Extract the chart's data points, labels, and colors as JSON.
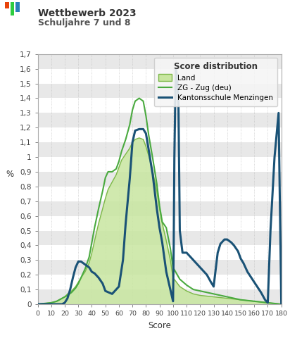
{
  "title1": "Wettbewerb 2023",
  "title2": "Schuljahre 7 und 8",
  "xlabel": "Score",
  "ylabel": "%",
  "ylim": [
    0,
    1.7
  ],
  "yticks": [
    0,
    0.1,
    0.2,
    0.3,
    0.4,
    0.5,
    0.6,
    0.7,
    0.8,
    0.9,
    1.0,
    1.1,
    1.2,
    1.3,
    1.4,
    1.5,
    1.6,
    1.7
  ],
  "ytick_labels": [
    "0",
    "0,1",
    "0,2",
    "0,3",
    "0,4",
    "0,5",
    "0,6",
    "0,7",
    "0,8",
    "0,9",
    "1",
    "1,1",
    "1,2",
    "1,3",
    "1,4",
    "1,5",
    "1,6",
    "1,7"
  ],
  "xticks": [
    0,
    10,
    20,
    30,
    40,
    50,
    60,
    70,
    80,
    90,
    100,
    110,
    120,
    130,
    140,
    150,
    160,
    170,
    180
  ],
  "xlim": [
    0,
    180
  ],
  "legend_title": "Score distribution",
  "legend_entries": [
    "Land",
    "ZG - Zug (deu)",
    "Kantonsschule Menzingen"
  ],
  "land_fill_color": "#c8e6a0",
  "land_fill_alpha": 0.85,
  "land_line_color": "#7db84a",
  "zg_line_color": "#4aaa3f",
  "school_line_color": "#1a5276",
  "band_colors": [
    "#e8e8e8",
    "#ffffff"
  ],
  "land_x": [
    0,
    5,
    10,
    14,
    16,
    18,
    20,
    22,
    25,
    28,
    30,
    32,
    35,
    38,
    40,
    42,
    45,
    48,
    50,
    52,
    55,
    58,
    60,
    62,
    65,
    68,
    70,
    72,
    75,
    78,
    80,
    82,
    85,
    88,
    90,
    92,
    95,
    98,
    100,
    105,
    110,
    115,
    120,
    125,
    130,
    135,
    140,
    145,
    150,
    155,
    160,
    165,
    170,
    175,
    178,
    180
  ],
  "land_y": [
    0,
    0.005,
    0.01,
    0.02,
    0.03,
    0.04,
    0.05,
    0.07,
    0.09,
    0.12,
    0.15,
    0.18,
    0.22,
    0.28,
    0.35,
    0.43,
    0.55,
    0.65,
    0.72,
    0.78,
    0.83,
    0.88,
    0.93,
    0.98,
    1.02,
    1.06,
    1.1,
    1.12,
    1.13,
    1.12,
    1.07,
    1.01,
    0.9,
    0.77,
    0.65,
    0.55,
    0.43,
    0.3,
    0.18,
    0.12,
    0.09,
    0.07,
    0.06,
    0.055,
    0.05,
    0.045,
    0.04,
    0.035,
    0.03,
    0.025,
    0.02,
    0.015,
    0.01,
    0.005,
    0.002,
    0
  ],
  "zg_x": [
    0,
    5,
    10,
    14,
    16,
    18,
    20,
    22,
    25,
    28,
    30,
    32,
    35,
    38,
    40,
    42,
    45,
    48,
    50,
    52,
    55,
    58,
    60,
    62,
    65,
    68,
    70,
    72,
    75,
    78,
    80,
    82,
    85,
    88,
    90,
    92,
    95,
    98,
    100,
    105,
    110,
    115,
    120,
    125,
    130,
    135,
    140,
    145,
    150,
    155,
    160,
    165,
    170,
    175,
    178,
    180
  ],
  "zg_y": [
    0,
    0.005,
    0.01,
    0.02,
    0.03,
    0.04,
    0.05,
    0.06,
    0.08,
    0.11,
    0.14,
    0.18,
    0.24,
    0.32,
    0.42,
    0.52,
    0.65,
    0.77,
    0.86,
    0.9,
    0.9,
    0.92,
    0.97,
    1.04,
    1.12,
    1.22,
    1.32,
    1.38,
    1.4,
    1.38,
    1.28,
    1.15,
    0.99,
    0.82,
    0.67,
    0.56,
    0.52,
    0.38,
    0.25,
    0.17,
    0.13,
    0.1,
    0.09,
    0.08,
    0.07,
    0.06,
    0.05,
    0.04,
    0.03,
    0.025,
    0.02,
    0.015,
    0.01,
    0.005,
    0.002,
    0
  ],
  "school_x": [
    0,
    10,
    18,
    20,
    22,
    24,
    26,
    28,
    30,
    32,
    35,
    38,
    40,
    42,
    45,
    48,
    50,
    55,
    60,
    63,
    65,
    68,
    70,
    72,
    75,
    78,
    80,
    82,
    85,
    88,
    90,
    92,
    95,
    98,
    100,
    100.5,
    101,
    102,
    103,
    104,
    105,
    107,
    110,
    112,
    115,
    120,
    125,
    128,
    130,
    133,
    135,
    138,
    140,
    143,
    145,
    148,
    150,
    152,
    155,
    160,
    165,
    168,
    170,
    172,
    175,
    178,
    180
  ],
  "school_y": [
    0,
    0,
    0,
    0.01,
    0.04,
    0.1,
    0.18,
    0.25,
    0.29,
    0.29,
    0.27,
    0.25,
    0.22,
    0.21,
    0.18,
    0.14,
    0.09,
    0.07,
    0.12,
    0.3,
    0.55,
    0.85,
    1.1,
    1.18,
    1.19,
    1.19,
    1.16,
    1.05,
    0.88,
    0.65,
    0.52,
    0.42,
    0.22,
    0.1,
    0.02,
    0.4,
    1.0,
    1.6,
    1.55,
    1.36,
    0.5,
    0.35,
    0.35,
    0.33,
    0.3,
    0.25,
    0.2,
    0.15,
    0.12,
    0.35,
    0.41,
    0.44,
    0.44,
    0.42,
    0.4,
    0.36,
    0.31,
    0.28,
    0.22,
    0.15,
    0.08,
    0.03,
    0.01,
    0.5,
    1.0,
    1.3,
    0
  ]
}
